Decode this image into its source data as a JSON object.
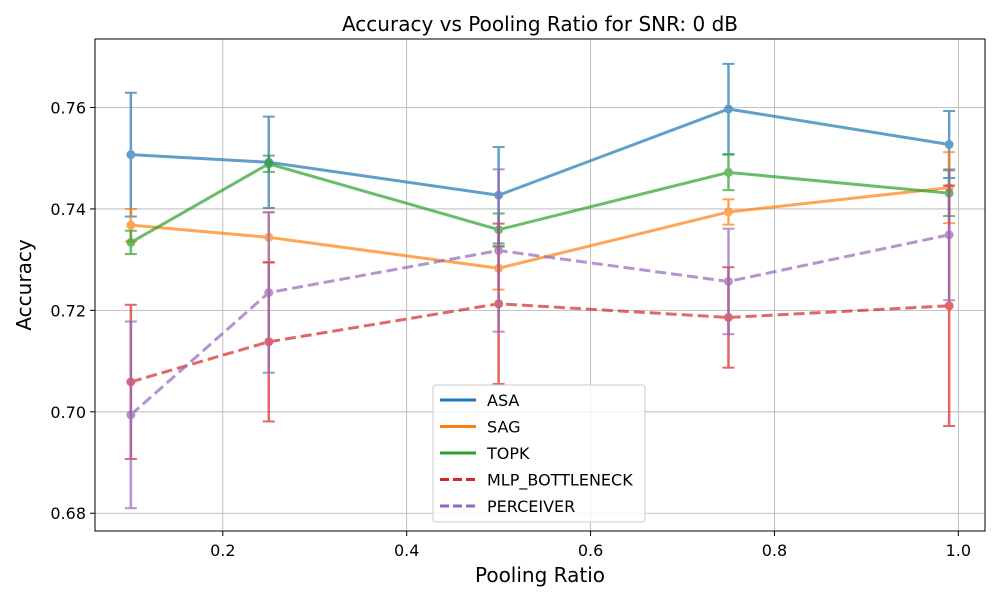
{
  "chart_data": {
    "type": "line",
    "title": "Accuracy vs Pooling Ratio for SNR: 0 dB",
    "xlabel": "Pooling Ratio",
    "ylabel": "Accuracy",
    "x": [
      0.1,
      0.25,
      0.5,
      0.75,
      0.99
    ],
    "xlim": [
      0.061,
      1.029
    ],
    "ylim": [
      0.6765,
      0.7735
    ],
    "xticks": [
      0.2,
      0.4,
      0.6,
      0.8,
      1.0
    ],
    "xtick_labels": [
      "0.2",
      "0.4",
      "0.6",
      "0.8",
      "1.0"
    ],
    "yticks": [
      0.68,
      0.7,
      0.72,
      0.74,
      0.76
    ],
    "ytick_labels": [
      "0.68",
      "0.70",
      "0.72",
      "0.74",
      "0.76"
    ],
    "grid": true,
    "legend_position": "bottom-center",
    "series": [
      {
        "name": "ASA",
        "color": "#1f77b4",
        "dash": "solid",
        "values": [
          0.7507,
          0.7492,
          0.7427,
          0.7597,
          0.7527
        ],
        "errors": [
          0.0122,
          0.009,
          0.0095,
          0.0089,
          0.0066
        ]
      },
      {
        "name": "SAG",
        "color": "#ff7f0e",
        "dash": "solid",
        "values": [
          0.7368,
          0.7344,
          0.7283,
          0.7394,
          0.7442
        ],
        "errors": [
          0.0032,
          0.005,
          0.0042,
          0.0025,
          0.007
        ]
      },
      {
        "name": "TOPK",
        "color": "#2ca02c",
        "dash": "solid",
        "values": [
          0.7334,
          0.7489,
          0.7359,
          0.7472,
          0.7431
        ],
        "errors": [
          0.0023,
          0.0016,
          0.0032,
          0.0035,
          0.0045
        ]
      },
      {
        "name": "MLP_BOTTLENECK",
        "color": "#d62728",
        "dash": "dashed",
        "values": [
          0.7059,
          0.7138,
          0.7213,
          0.7186,
          0.7209
        ],
        "errors": [
          0.0152,
          0.0157,
          0.0158,
          0.0099,
          0.0237
        ]
      },
      {
        "name": "PERCEIVER",
        "color": "#9467bd",
        "dash": "dashed",
        "values": [
          0.6994,
          0.7235,
          0.7318,
          0.7257,
          0.7349
        ],
        "errors": [
          0.0184,
          0.0158,
          0.016,
          0.0104,
          0.0129
        ]
      }
    ]
  }
}
